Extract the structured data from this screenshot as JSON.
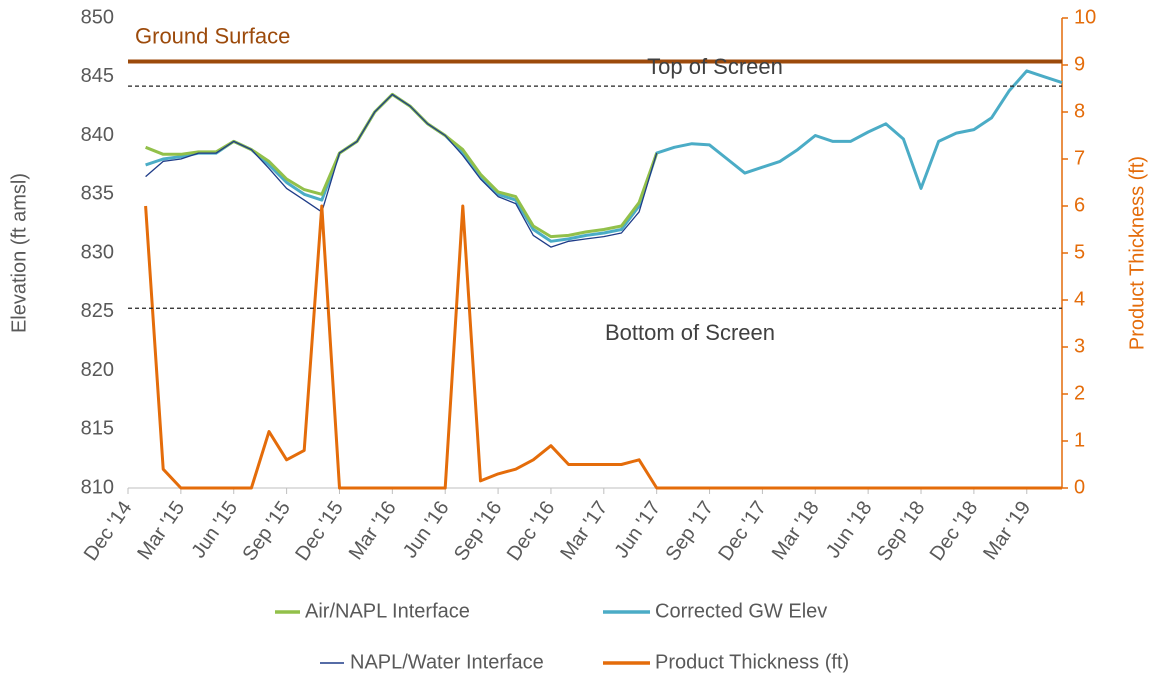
{
  "chart_data": {
    "type": "line",
    "y_label": "Elevation (ft amsl)",
    "y2_label": "Product Thickness (ft)",
    "x": [
      "2015-01",
      "2015-02",
      "2015-03",
      "2015-04",
      "2015-05",
      "2015-06",
      "2015-07",
      "2015-08",
      "2015-09",
      "2015-10",
      "2015-11",
      "2015-12",
      "2016-01",
      "2016-02",
      "2016-03",
      "2016-04",
      "2016-05",
      "2016-06",
      "2016-07",
      "2016-08",
      "2016-09",
      "2016-10",
      "2016-11",
      "2016-12",
      "2017-01",
      "2017-02",
      "2017-03",
      "2017-04",
      "2017-05",
      "2017-06",
      "2017-07",
      "2017-08",
      "2017-09",
      "2017-10",
      "2017-11",
      "2017-12",
      "2018-01",
      "2018-02",
      "2018-03",
      "2018-04",
      "2018-05",
      "2018-06",
      "2018-07",
      "2018-08",
      "2018-09",
      "2018-10",
      "2018-11",
      "2018-12",
      "2019-01",
      "2019-02",
      "2019-03",
      "2019-04",
      "2019-05"
    ],
    "xlim": [
      "2014-12",
      "2019-05"
    ],
    "xticks": [
      {
        "value": "2014-12",
        "label": "Dec '14"
      },
      {
        "value": "2015-03",
        "label": "Mar '15"
      },
      {
        "value": "2015-06",
        "label": "Jun '15"
      },
      {
        "value": "2015-09",
        "label": "Sep '15"
      },
      {
        "value": "2015-12",
        "label": "Dec '15"
      },
      {
        "value": "2016-03",
        "label": "Mar '16"
      },
      {
        "value": "2016-06",
        "label": "Jun '16"
      },
      {
        "value": "2016-09",
        "label": "Sep '16"
      },
      {
        "value": "2016-12",
        "label": "Dec '16"
      },
      {
        "value": "2017-03",
        "label": "Mar '17"
      },
      {
        "value": "2017-06",
        "label": "Jun '17"
      },
      {
        "value": "2017-09",
        "label": "Sep '17"
      },
      {
        "value": "2017-12",
        "label": "Dec '17"
      },
      {
        "value": "2018-03",
        "label": "Mar '18"
      },
      {
        "value": "2018-06",
        "label": "Jun '18"
      },
      {
        "value": "2018-09",
        "label": "Sep '18"
      },
      {
        "value": "2018-12",
        "label": "Dec '18"
      },
      {
        "value": "2019-03",
        "label": "Mar '19"
      }
    ],
    "ylim": [
      810,
      850
    ],
    "yticks": [
      810,
      815,
      820,
      825,
      830,
      835,
      840,
      845,
      850
    ],
    "y2lim": [
      0,
      10
    ],
    "y2ticks": [
      0,
      1,
      2,
      3,
      4,
      5,
      6,
      7,
      8,
      9,
      10
    ],
    "series": [
      {
        "name": "Air/NAPL Interface",
        "color": "#92c04a",
        "values": [
          839.0,
          838.4,
          838.4,
          838.6,
          838.6,
          839.5,
          838.8,
          837.8,
          836.3,
          835.4,
          835.0,
          838.5,
          839.5,
          842,
          843.5,
          842.5,
          841,
          840,
          838.8,
          836.7,
          835.2,
          834.8,
          832.3,
          831.4,
          831.5,
          831.8,
          832,
          832.3,
          834.3,
          838.5,
          null,
          null,
          null,
          null,
          null,
          null,
          null,
          null,
          null,
          null,
          null,
          null,
          null,
          null,
          null,
          null,
          null,
          null,
          null,
          null,
          null,
          null,
          null
        ]
      },
      {
        "name": "Corrected GW Elev",
        "color": "#4bacc6",
        "values": [
          837.5,
          838,
          838.2,
          838.5,
          838.5,
          839.5,
          838.8,
          837.5,
          836,
          835,
          834.5,
          838.5,
          839.5,
          842,
          843.5,
          842.5,
          841,
          840,
          838.5,
          836.5,
          835,
          834.5,
          832,
          831,
          831.2,
          831.5,
          831.7,
          832,
          834,
          838.5,
          839,
          839.3,
          839.2,
          838,
          836.8,
          837.3,
          837.8,
          838.8,
          840,
          839.5,
          839.5,
          840.3,
          841,
          839.7,
          835.5,
          839.5,
          840.2,
          840.5,
          841.5,
          843.8,
          845.5,
          845,
          844.5
        ]
      },
      {
        "name": "NAPL/Water Interface",
        "color": "#1f3c88",
        "values": [
          836.5,
          837.8,
          838.0,
          838.5,
          838.5,
          839.5,
          838.8,
          837.2,
          835.5,
          834.5,
          833.5,
          838.5,
          839.5,
          842,
          843.5,
          842.5,
          841,
          840,
          838.3,
          836.3,
          834.8,
          834.2,
          831.5,
          830.5,
          831,
          831.2,
          831.4,
          831.7,
          833.5,
          838.5,
          null,
          null,
          null,
          null,
          null,
          null,
          null,
          null,
          null,
          null,
          null,
          null,
          null,
          null,
          null,
          null,
          null,
          null,
          null,
          null,
          null,
          null,
          null
        ]
      },
      {
        "name": "Product Thickness (ft)",
        "color": "#e46c0a",
        "axis": "y2",
        "values": [
          6.0,
          0.4,
          0,
          0,
          0,
          0,
          0,
          1.2,
          0.6,
          0.8,
          6.0,
          0,
          0,
          0,
          0,
          0,
          0,
          0,
          6.0,
          0.15,
          0.3,
          0.4,
          0.6,
          0.9,
          0.5,
          0.5,
          0.5,
          0.5,
          0.6,
          0,
          0,
          0,
          0,
          0,
          0,
          0,
          0,
          0,
          0,
          0,
          0,
          0,
          0,
          0,
          0,
          0,
          0,
          0,
          0,
          0,
          0,
          0,
          0
        ]
      }
    ],
    "reference_lines": [
      {
        "label": "Ground Surface",
        "value": 846.3,
        "color": "#9c4a0b",
        "style": "solid"
      },
      {
        "label": "Top of Screen",
        "value": 844.2,
        "color": "#222222",
        "style": "dashed"
      },
      {
        "label": "Bottom of Screen",
        "value": 825.3,
        "color": "#222222",
        "style": "dashed"
      }
    ]
  }
}
